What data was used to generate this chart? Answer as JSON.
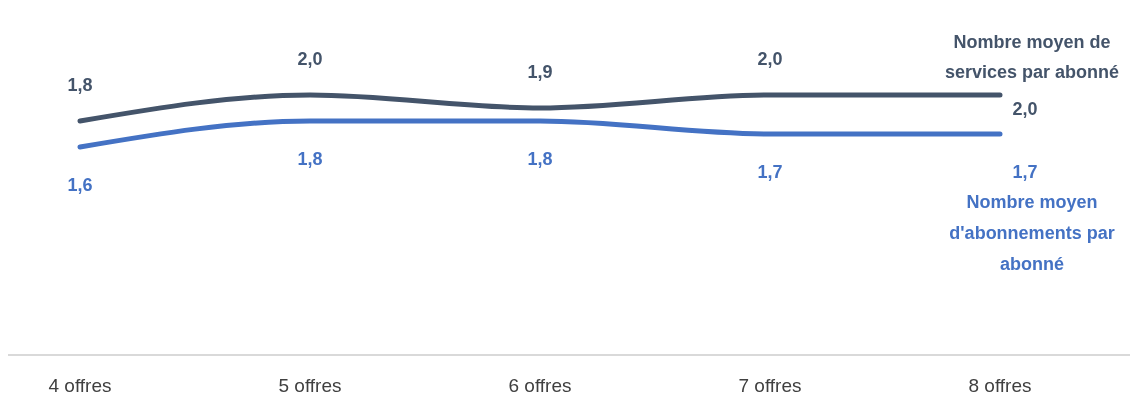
{
  "chart_data": {
    "type": "line",
    "categories": [
      "4 offres",
      "5 offres",
      "6 offres",
      "7 offres",
      "8 offres"
    ],
    "tick_labels": "x",
    "marker": "none",
    "line_style": "solid",
    "series": [
      {
        "name": "Nombre moyen de services par abonné",
        "color": "#44546a",
        "values": [
          1.8,
          2.0,
          1.9,
          2.0,
          2.0
        ],
        "value_labels": [
          "1,8",
          "2,0",
          "1,9",
          "2,0",
          "2,0"
        ]
      },
      {
        "name": "Nombre moyen d'abonnements par abonné",
        "color": "#4472c4",
        "values": [
          1.6,
          1.8,
          1.8,
          1.7,
          1.7
        ],
        "value_labels": [
          "1,6",
          "1,8",
          "1,8",
          "1,7",
          "1,7"
        ]
      }
    ]
  }
}
